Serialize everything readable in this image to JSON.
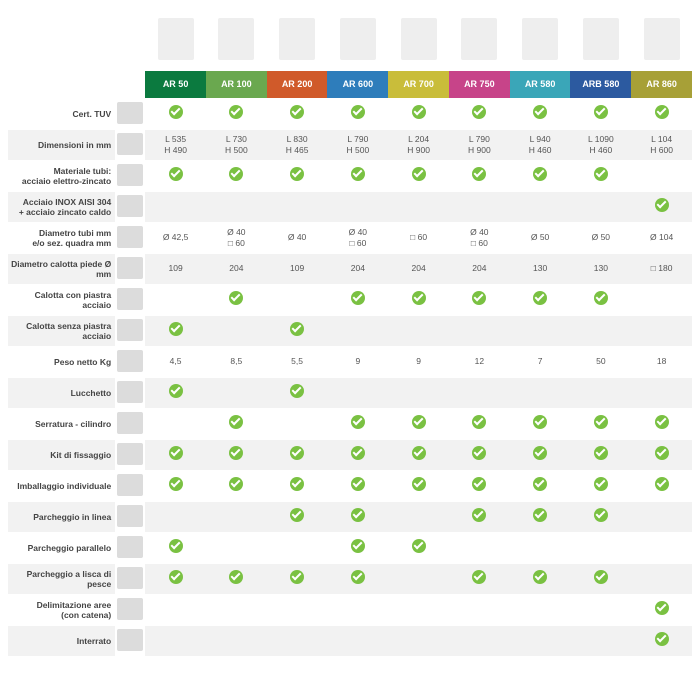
{
  "columns": [
    {
      "code": "AR 50",
      "color": "#0b7a3f"
    },
    {
      "code": "AR 100",
      "color": "#6aa84f"
    },
    {
      "code": "AR 200",
      "color": "#d05a2a"
    },
    {
      "code": "AR 600",
      "color": "#2e7dbb"
    },
    {
      "code": "AR 700",
      "color": "#c9bd3a"
    },
    {
      "code": "AR 750",
      "color": "#c74489"
    },
    {
      "code": "AR 580",
      "color": "#3aa6b8"
    },
    {
      "code": "ARB 580",
      "color": "#2c5aa0"
    },
    {
      "code": "AR 860",
      "color": "#a7a037"
    }
  ],
  "rows": [
    {
      "label": "Cert. TUV",
      "shade": false,
      "cells": [
        {
          "t": "c"
        },
        {
          "t": "c"
        },
        {
          "t": "c"
        },
        {
          "t": "c"
        },
        {
          "t": "c"
        },
        {
          "t": "c"
        },
        {
          "t": "c"
        },
        {
          "t": "c"
        },
        {
          "t": "c"
        }
      ]
    },
    {
      "label": "Dimensioni in mm",
      "shade": true,
      "cells": [
        {
          "t": "v",
          "v": "L 535\nH 490"
        },
        {
          "t": "v",
          "v": "L 730\nH 500"
        },
        {
          "t": "v",
          "v": "L 830\nH 465"
        },
        {
          "t": "v",
          "v": "L 790\nH 500"
        },
        {
          "t": "v",
          "v": "L 204\nH 900"
        },
        {
          "t": "v",
          "v": "L 790\nH 900"
        },
        {
          "t": "v",
          "v": "L 940\nH 460"
        },
        {
          "t": "v",
          "v": "L 1090\nH 460"
        },
        {
          "t": "v",
          "v": "L 104\nH 600"
        }
      ]
    },
    {
      "label": "Materiale tubi:\nacciaio elettro-zincato",
      "shade": false,
      "cells": [
        {
          "t": "c"
        },
        {
          "t": "c"
        },
        {
          "t": "c"
        },
        {
          "t": "c"
        },
        {
          "t": "c"
        },
        {
          "t": "c"
        },
        {
          "t": "c"
        },
        {
          "t": "c"
        },
        {
          "t": ""
        }
      ]
    },
    {
      "label": "Acciaio INOX AISI 304\n+ acciaio zincato caldo",
      "shade": true,
      "cells": [
        {
          "t": ""
        },
        {
          "t": ""
        },
        {
          "t": ""
        },
        {
          "t": ""
        },
        {
          "t": ""
        },
        {
          "t": ""
        },
        {
          "t": ""
        },
        {
          "t": ""
        },
        {
          "t": "c"
        }
      ]
    },
    {
      "label": "Diametro tubi mm\ne/o sez. quadra mm",
      "shade": false,
      "cells": [
        {
          "t": "v",
          "v": "Ø 42,5"
        },
        {
          "t": "v",
          "v": "Ø 40\n□ 60"
        },
        {
          "t": "v",
          "v": "Ø 40"
        },
        {
          "t": "v",
          "v": "Ø 40\n□ 60"
        },
        {
          "t": "v",
          "v": "□ 60"
        },
        {
          "t": "v",
          "v": "Ø 40\n□ 60"
        },
        {
          "t": "v",
          "v": "Ø 50"
        },
        {
          "t": "v",
          "v": "Ø 50"
        },
        {
          "t": "v",
          "v": "Ø 104"
        }
      ]
    },
    {
      "label": "Diametro calotta piede Ø mm",
      "shade": true,
      "cells": [
        {
          "t": "v",
          "v": "109"
        },
        {
          "t": "v",
          "v": "204"
        },
        {
          "t": "v",
          "v": "109"
        },
        {
          "t": "v",
          "v": "204"
        },
        {
          "t": "v",
          "v": "204"
        },
        {
          "t": "v",
          "v": "204"
        },
        {
          "t": "v",
          "v": "130"
        },
        {
          "t": "v",
          "v": "130"
        },
        {
          "t": "v",
          "v": "□ 180"
        }
      ]
    },
    {
      "label": "Calotta con piastra acciaio",
      "shade": false,
      "cells": [
        {
          "t": ""
        },
        {
          "t": "c"
        },
        {
          "t": ""
        },
        {
          "t": "c"
        },
        {
          "t": "c"
        },
        {
          "t": "c"
        },
        {
          "t": "c"
        },
        {
          "t": "c"
        },
        {
          "t": ""
        }
      ]
    },
    {
      "label": "Calotta senza piastra acciaio",
      "shade": true,
      "cells": [
        {
          "t": "c"
        },
        {
          "t": ""
        },
        {
          "t": "c"
        },
        {
          "t": ""
        },
        {
          "t": ""
        },
        {
          "t": ""
        },
        {
          "t": ""
        },
        {
          "t": ""
        },
        {
          "t": ""
        }
      ]
    },
    {
      "label": "Peso netto Kg",
      "shade": false,
      "cells": [
        {
          "t": "v",
          "v": "4,5"
        },
        {
          "t": "v",
          "v": "8,5"
        },
        {
          "t": "v",
          "v": "5,5"
        },
        {
          "t": "v",
          "v": "9"
        },
        {
          "t": "v",
          "v": "9"
        },
        {
          "t": "v",
          "v": "12"
        },
        {
          "t": "v",
          "v": "7"
        },
        {
          "t": "v",
          "v": "50"
        },
        {
          "t": "v",
          "v": "18"
        }
      ]
    },
    {
      "label": "Lucchetto",
      "shade": true,
      "cells": [
        {
          "t": "c"
        },
        {
          "t": ""
        },
        {
          "t": "c"
        },
        {
          "t": ""
        },
        {
          "t": ""
        },
        {
          "t": ""
        },
        {
          "t": ""
        },
        {
          "t": ""
        },
        {
          "t": ""
        }
      ]
    },
    {
      "label": "Serratura - cilindro",
      "shade": false,
      "cells": [
        {
          "t": ""
        },
        {
          "t": "c"
        },
        {
          "t": ""
        },
        {
          "t": "c"
        },
        {
          "t": "c"
        },
        {
          "t": "c"
        },
        {
          "t": "c"
        },
        {
          "t": "c"
        },
        {
          "t": "c"
        }
      ]
    },
    {
      "label": "Kit di fissaggio",
      "shade": true,
      "cells": [
        {
          "t": "c"
        },
        {
          "t": "c"
        },
        {
          "t": "c"
        },
        {
          "t": "c"
        },
        {
          "t": "c"
        },
        {
          "t": "c"
        },
        {
          "t": "c"
        },
        {
          "t": "c"
        },
        {
          "t": "c"
        }
      ]
    },
    {
      "label": "Imballaggio individuale",
      "shade": false,
      "cells": [
        {
          "t": "c"
        },
        {
          "t": "c"
        },
        {
          "t": "c"
        },
        {
          "t": "c"
        },
        {
          "t": "c"
        },
        {
          "t": "c"
        },
        {
          "t": "c"
        },
        {
          "t": "c"
        },
        {
          "t": "c"
        }
      ]
    },
    {
      "label": "Parcheggio in linea",
      "shade": true,
      "cells": [
        {
          "t": ""
        },
        {
          "t": ""
        },
        {
          "t": "c"
        },
        {
          "t": "c"
        },
        {
          "t": ""
        },
        {
          "t": "c"
        },
        {
          "t": "c"
        },
        {
          "t": "c"
        },
        {
          "t": ""
        }
      ]
    },
    {
      "label": "Parcheggio parallelo",
      "shade": false,
      "cells": [
        {
          "t": "c"
        },
        {
          "t": ""
        },
        {
          "t": ""
        },
        {
          "t": "c"
        },
        {
          "t": "c"
        },
        {
          "t": ""
        },
        {
          "t": ""
        },
        {
          "t": ""
        },
        {
          "t": ""
        }
      ]
    },
    {
      "label": "Parcheggio a lisca di pesce",
      "shade": true,
      "cells": [
        {
          "t": "c"
        },
        {
          "t": "c"
        },
        {
          "t": "c"
        },
        {
          "t": "c"
        },
        {
          "t": ""
        },
        {
          "t": "c"
        },
        {
          "t": "c"
        },
        {
          "t": "c"
        },
        {
          "t": ""
        }
      ]
    },
    {
      "label": "Delimitazione aree\n(con catena)",
      "shade": false,
      "cells": [
        {
          "t": ""
        },
        {
          "t": ""
        },
        {
          "t": ""
        },
        {
          "t": ""
        },
        {
          "t": ""
        },
        {
          "t": ""
        },
        {
          "t": ""
        },
        {
          "t": ""
        },
        {
          "t": "c"
        }
      ]
    },
    {
      "label": "Interrato",
      "shade": true,
      "cells": [
        {
          "t": ""
        },
        {
          "t": ""
        },
        {
          "t": ""
        },
        {
          "t": ""
        },
        {
          "t": ""
        },
        {
          "t": ""
        },
        {
          "t": ""
        },
        {
          "t": ""
        },
        {
          "t": "c"
        }
      ]
    }
  ]
}
